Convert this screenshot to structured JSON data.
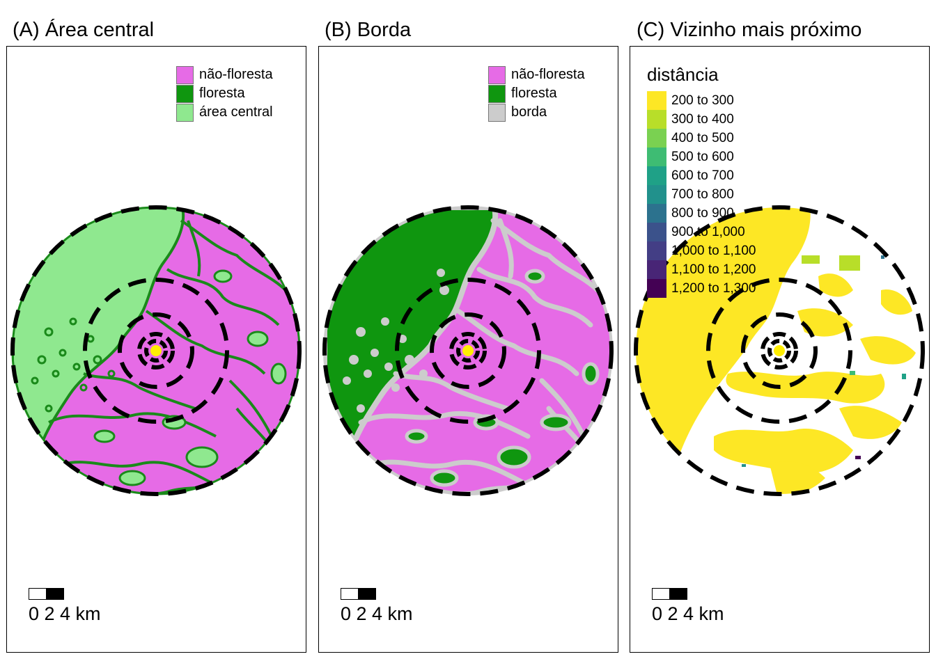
{
  "panels": [
    {
      "title": "(A) Área central",
      "legend": [
        {
          "label": "não-floresta",
          "color": "#E66BE6"
        },
        {
          "label": "floresta",
          "color": "#0F960F"
        },
        {
          "label": "área central",
          "color": "#8FE88F"
        }
      ],
      "scalebar": {
        "label": "0 2 4 km"
      }
    },
    {
      "title": "(B) Borda",
      "legend": [
        {
          "label": "não-floresta",
          "color": "#E66BE6"
        },
        {
          "label": "floresta",
          "color": "#0F960F"
        },
        {
          "label": "borda",
          "color": "#CCCCCC"
        }
      ],
      "scalebar": {
        "label": "0 2 4 km"
      }
    },
    {
      "title": "(C) Vizinho mais próximo",
      "legend_title": "distância",
      "legend": [
        {
          "label": "200 to 300",
          "color": "#FDE725"
        },
        {
          "label": "300 to 400",
          "color": "#B8DE29"
        },
        {
          "label": "400 to 500",
          "color": "#7AD151"
        },
        {
          "label": "500 to 600",
          "color": "#3EBC73"
        },
        {
          "label": "600 to 700",
          "color": "#1FA187"
        },
        {
          "label": "700 to 800",
          "color": "#21918C"
        },
        {
          "label": "800 to 900",
          "color": "#2C728E"
        },
        {
          "label": "900 to 1,000",
          "color": "#3B528B"
        },
        {
          "label": "1,000 to 1,100",
          "color": "#433E85"
        },
        {
          "label": "1,100 to 1,200",
          "color": "#482576"
        },
        {
          "label": "1,200 to 1,300",
          "color": "#440154"
        }
      ],
      "scalebar": {
        "label": "0 2 4 km"
      }
    }
  ],
  "colors": {
    "center_point": "#FFEE00",
    "buffer_ring": "#000000",
    "forest_outline": "#1A8A1A"
  }
}
